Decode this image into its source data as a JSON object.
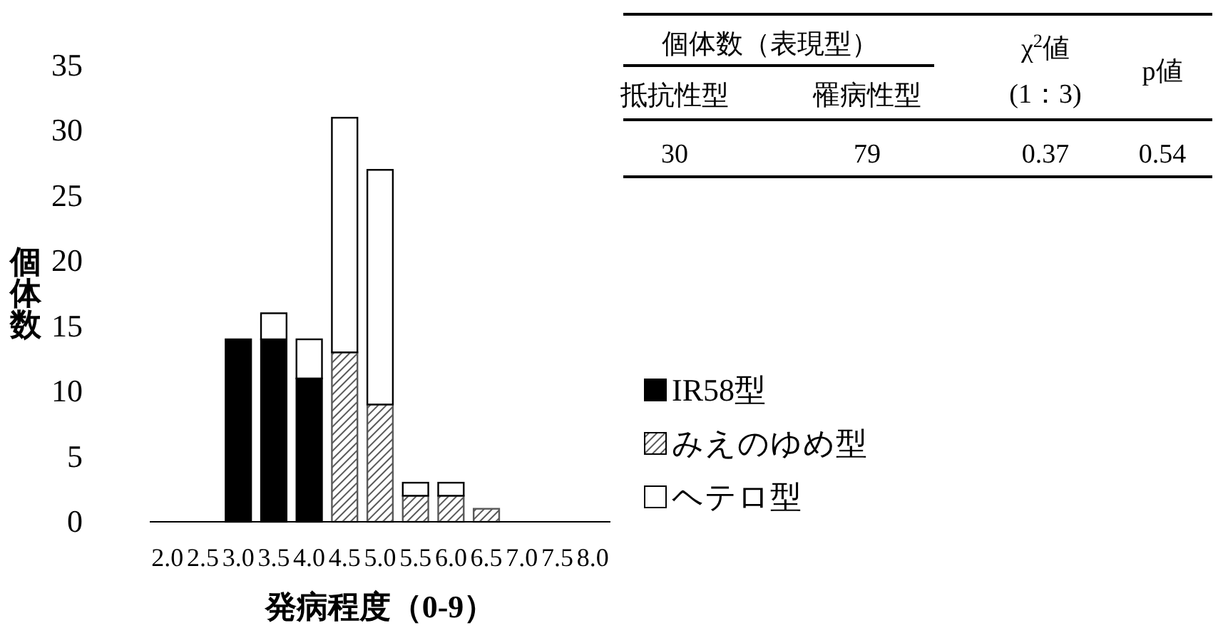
{
  "chart_data": {
    "type": "bar",
    "stacked": true,
    "xlabel": "発病程度（0-9）",
    "ylabel": "個体数",
    "categories": [
      "2.0",
      "2.5",
      "3.0",
      "3.5",
      "4.0",
      "4.5",
      "5.0",
      "5.5",
      "6.0",
      "6.5",
      "7.0",
      "7.5",
      "8.0"
    ],
    "series": [
      {
        "name": "IR58型",
        "color": "#000000",
        "values": [
          null,
          null,
          14,
          14,
          11,
          null,
          null,
          null,
          null,
          null,
          null,
          null,
          null
        ]
      },
      {
        "name": "みえのゆめ型",
        "color": "#595959",
        "values": [
          null,
          null,
          null,
          null,
          null,
          13,
          9,
          2,
          2,
          1,
          null,
          null,
          null
        ]
      },
      {
        "name": "ヘテロ型",
        "color": "#ffffff",
        "values": [
          null,
          null,
          null,
          2,
          3,
          18,
          18,
          1,
          1,
          null,
          null,
          null,
          null
        ]
      }
    ],
    "ylim": [
      0,
      35
    ],
    "yticks": [
      0,
      5,
      10,
      15,
      20,
      25,
      30,
      35
    ],
    "legend": "right",
    "annotations": [
      "個体数（表現型）",
      "抵抗性型",
      "罹病性型",
      "χ$^{2}$値",
      "(1：3)",
      "p値",
      "30",
      "79",
      "0.37",
      "0.54"
    ]
  }
}
